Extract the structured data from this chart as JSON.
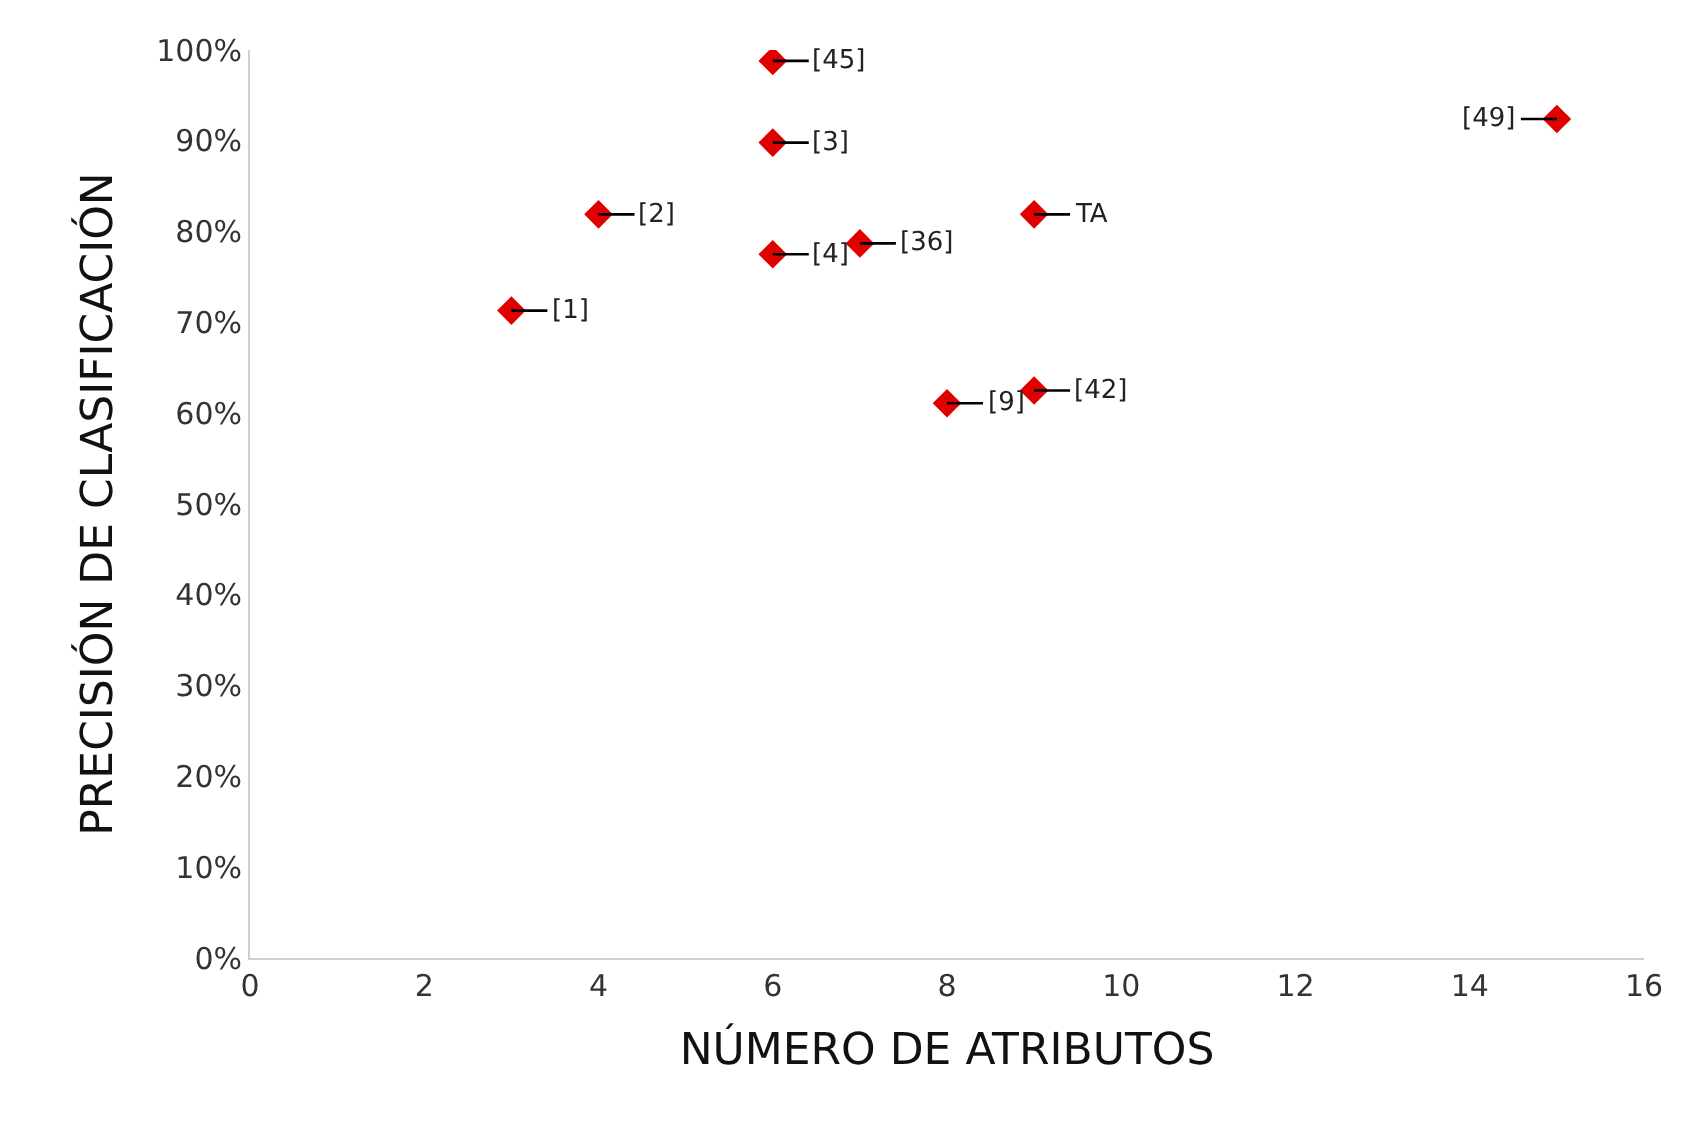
{
  "chart_data": {
    "type": "scatter",
    "xlabel": "NÚMERO DE ATRIBUTOS",
    "ylabel": "PRECISIÓN DE CLASIFICACIÓN",
    "x": [
      6,
      6,
      4,
      6,
      7,
      9,
      3,
      8,
      9,
      15
    ],
    "series": [
      {
        "color": "#e00000",
        "values": [
          98.8,
          89.8,
          81.9,
          77.5,
          78.7,
          81.9,
          71.3,
          61.1,
          62.5,
          92.4
        ]
      }
    ],
    "annotations": [
      {
        "text": "[45]",
        "x": 6,
        "y": 98.8
      },
      {
        "text": "[3]",
        "x": 6,
        "y": 89.8
      },
      {
        "text": "[2]",
        "x": 4,
        "y": 81.9
      },
      {
        "text": "[4]",
        "x": 6,
        "y": 77.5
      },
      {
        "text": "[36]",
        "x": 7,
        "y": 78.7
      },
      {
        "text": "TA",
        "x": 9,
        "y": 81.9
      },
      {
        "text": "[1]",
        "x": 3,
        "y": 71.3
      },
      {
        "text": "[9]",
        "x": 8,
        "y": 61.1
      },
      {
        "text": "[42]",
        "x": 9,
        "y": 62.5
      },
      {
        "text": "[49]",
        "x": 15,
        "y": 92.4
      }
    ],
    "xlim": [
      0,
      16
    ],
    "xticks": [
      0,
      2,
      4,
      6,
      8,
      10,
      12,
      14,
      16
    ],
    "ylim": [
      0,
      100
    ],
    "yticks": [
      {
        "value": 0,
        "label": "0%"
      },
      {
        "value": 10,
        "label": "10%"
      },
      {
        "value": 20,
        "label": "20%"
      },
      {
        "value": 30,
        "label": "30%"
      },
      {
        "value": 40,
        "label": "40%"
      },
      {
        "value": 50,
        "label": "50%"
      },
      {
        "value": 60,
        "label": "60%"
      },
      {
        "value": 70,
        "label": "70%"
      },
      {
        "value": 80,
        "label": "80%"
      },
      {
        "value": 90,
        "label": "90%"
      },
      {
        "value": 100,
        "label": "100%"
      }
    ],
    "marker": "diamond"
  }
}
